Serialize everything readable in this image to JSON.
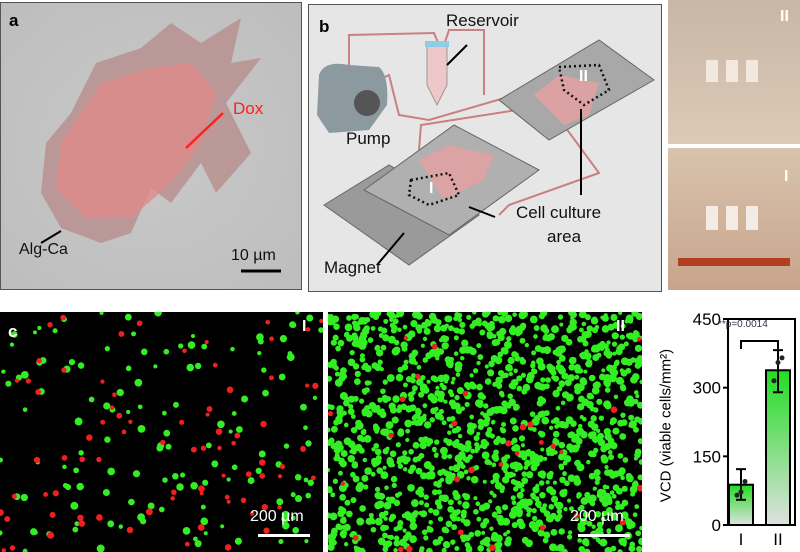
{
  "panel_a": {
    "label": "a",
    "dox": "Dox",
    "alg": "Alg-Ca",
    "scale": "10 µm"
  },
  "panel_b": {
    "label": "b",
    "reservoir": "Reservoir",
    "pump": "Pump",
    "cell_culture": "Cell culture",
    "area": "area",
    "magnet": "Magnet",
    "chip1": "I",
    "chip2": "II"
  },
  "photos": {
    "top": "II",
    "bottom": "I"
  },
  "panel_c": {
    "label": "c",
    "img1": "I",
    "img2": "II",
    "scale1": "200 µm",
    "scale2": "200 µm"
  },
  "colors": {
    "dox": "#ff2020",
    "live": "#33ee22",
    "dead": "#ee2020",
    "bar": "#22dd22"
  },
  "chart_data": {
    "type": "bar",
    "categories": [
      "I",
      "II"
    ],
    "values": [
      88,
      338
    ],
    "errors_low": [
      55,
      290
    ],
    "errors_high": [
      122,
      382
    ],
    "points": [
      [
        65,
        72,
        95
      ],
      [
        315,
        355,
        365
      ]
    ],
    "ylabel": "VCD (viable cells/mm²)",
    "ylim": [
      0,
      450
    ],
    "yticks": [
      "0",
      "150",
      "300",
      "450"
    ],
    "annotation": "**p=0.0014",
    "grid": false
  }
}
